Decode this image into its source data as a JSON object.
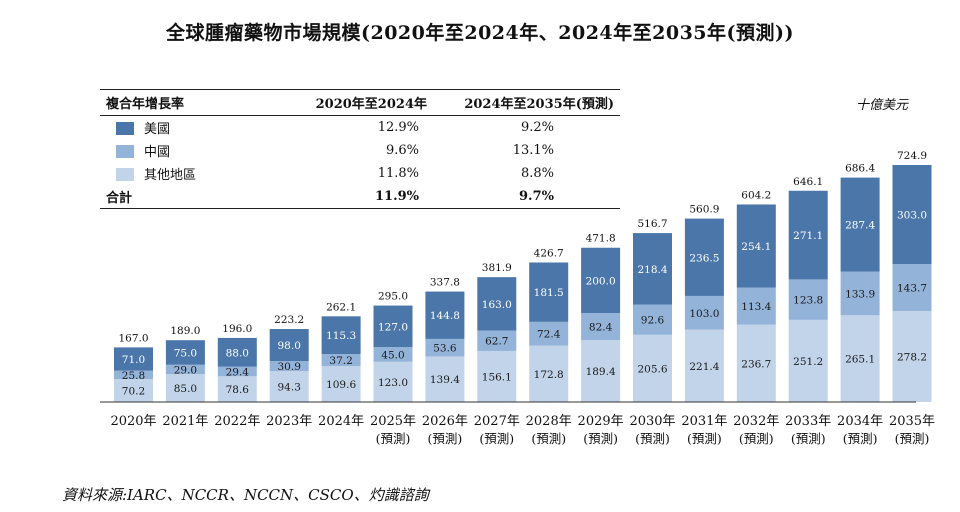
{
  "title": "全球腫瘤藥物市場規模(2020年至2024年、2024年至2035年(預測))",
  "unit": "十億美元",
  "source": "資料來源:IARC、NCCR、NCCN、CSCO、灼識諮詢",
  "colors": {
    "us": "#4a76a9",
    "china": "#94b3d9",
    "other": "#c2d4e9",
    "label_dark": "#1a1a1a",
    "label_light": "#ffffff"
  },
  "cagr_table": {
    "header": "複合年增長率",
    "col1": "2020年至2024年",
    "col2": "2024年至2035年(預測)",
    "rows": [
      {
        "label": "美國",
        "v1": "12.9%",
        "v2": "9.2%"
      },
      {
        "label": "中國",
        "v1": "9.6%",
        "v2": "13.1%"
      },
      {
        "label": "其他地區",
        "v1": "11.8%",
        "v2": "8.8%"
      }
    ],
    "total": {
      "label": "合計",
      "v1": "11.9%",
      "v2": "9.7%"
    }
  },
  "chart_data": {
    "type": "bar",
    "stacked": true,
    "title": "全球腫瘤藥物市場規模(2020年至2024年、2024年至2035年(預測))",
    "ylabel": "十億美元",
    "categories": [
      "2020年",
      "2021年",
      "2022年",
      "2023年",
      "2024年",
      "2025年",
      "2026年",
      "2027年",
      "2028年",
      "2029年",
      "2030年",
      "2031年",
      "2032年",
      "2033年",
      "2034年",
      "2035年"
    ],
    "forecast_label": "(預測)",
    "forecast_from_index": 5,
    "series": [
      {
        "name": "其他地區",
        "values": [
          70.2,
          85.0,
          78.6,
          94.3,
          109.6,
          123.0,
          139.4,
          156.1,
          172.8,
          189.4,
          205.6,
          221.4,
          236.7,
          251.2,
          265.1,
          278.2
        ]
      },
      {
        "name": "中國",
        "values": [
          25.8,
          29.0,
          29.4,
          30.9,
          37.2,
          45.0,
          53.6,
          62.7,
          72.4,
          82.4,
          92.6,
          103.0,
          113.4,
          123.8,
          133.9,
          143.7
        ]
      },
      {
        "name": "美國",
        "values": [
          71.0,
          75.0,
          88.0,
          98.0,
          115.3,
          127.0,
          144.8,
          163.0,
          181.5,
          200.0,
          218.4,
          236.5,
          254.1,
          271.1,
          287.4,
          303.0
        ]
      }
    ],
    "totals": [
      167.0,
      189.0,
      196.0,
      223.2,
      262.1,
      295.0,
      337.8,
      381.9,
      426.7,
      471.8,
      516.7,
      560.9,
      604.2,
      646.1,
      686.4,
      724.9
    ],
    "ylim": [
      0,
      724.9
    ],
    "grid": false
  }
}
